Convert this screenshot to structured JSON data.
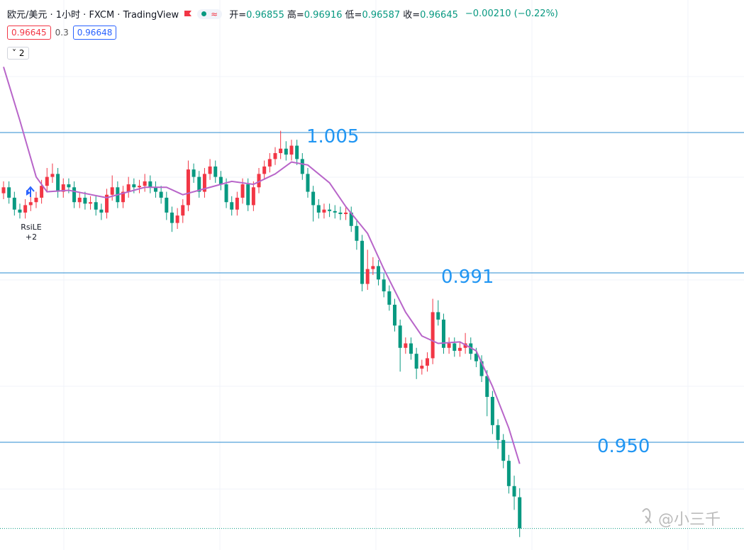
{
  "header": {
    "title": "欧元/美元 · 1小时 · FXCM · TradingView",
    "legend": [
      {
        "label": "开=",
        "value": 0.96855
      },
      {
        "label": "高=",
        "value": 0.96916
      },
      {
        "label": "低=",
        "value": 0.96587
      },
      {
        "label": "收=",
        "value": 0.96645
      }
    ],
    "change": "−0.00210 (−0.22%)",
    "bid": 0.96645,
    "spread": 0.3,
    "ask": 0.96648,
    "collapsed_count": 2
  },
  "chart_data": {
    "type": "candlestick",
    "up_color": "#f23645",
    "down_color": "#089981",
    "ylim": [
      0.965,
      1.002
    ],
    "ohlc": [
      [
        0.989,
        0.9898,
        0.9886,
        0.9894
      ],
      [
        0.9894,
        0.9898,
        0.9883,
        0.9887
      ],
      [
        0.9887,
        0.9891,
        0.9875,
        0.9879
      ],
      [
        0.9879,
        0.9883,
        0.9873,
        0.9877
      ],
      [
        0.9877,
        0.9886,
        0.9873,
        0.9882
      ],
      [
        0.9882,
        0.9888,
        0.9878,
        0.9884
      ],
      [
        0.9884,
        0.9891,
        0.988,
        0.9887
      ],
      [
        0.9887,
        0.9899,
        0.9883,
        0.9895
      ],
      [
        0.9895,
        0.9907,
        0.9891,
        0.9901
      ],
      [
        0.9901,
        0.991,
        0.9897,
        0.9903
      ],
      [
        0.9903,
        0.9907,
        0.9887,
        0.9891
      ],
      [
        0.9891,
        0.99,
        0.9887,
        0.9896
      ],
      [
        0.9896,
        0.99,
        0.989,
        0.9894
      ],
      [
        0.9894,
        0.9898,
        0.988,
        0.9884
      ],
      [
        0.9884,
        0.9891,
        0.988,
        0.9887
      ],
      [
        0.9887,
        0.9891,
        0.9879,
        0.9883
      ],
      [
        0.9883,
        0.9888,
        0.9879,
        0.9884
      ],
      [
        0.9884,
        0.9888,
        0.9875,
        0.9879
      ],
      [
        0.9879,
        0.9883,
        0.9872,
        0.9877
      ],
      [
        0.9877,
        0.9893,
        0.9873,
        0.9889
      ],
      [
        0.9889,
        0.9902,
        0.9885,
        0.9894
      ],
      [
        0.9894,
        0.9898,
        0.988,
        0.9884
      ],
      [
        0.9884,
        0.9895,
        0.988,
        0.9891
      ],
      [
        0.9891,
        0.9901,
        0.9887,
        0.9896
      ],
      [
        0.9896,
        0.99,
        0.989,
        0.9894
      ],
      [
        0.9894,
        0.9899,
        0.989,
        0.9895
      ],
      [
        0.9895,
        0.9903,
        0.9891,
        0.9898
      ],
      [
        0.9898,
        0.9902,
        0.989,
        0.9894
      ],
      [
        0.9894,
        0.9898,
        0.9887,
        0.9891
      ],
      [
        0.9891,
        0.9895,
        0.9883,
        0.9887
      ],
      [
        0.9887,
        0.9891,
        0.9872,
        0.9877
      ],
      [
        0.9877,
        0.9881,
        0.9864,
        0.987
      ],
      [
        0.987,
        0.988,
        0.9866,
        0.9875
      ],
      [
        0.9875,
        0.9886,
        0.987,
        0.9882
      ],
      [
        0.9882,
        0.9912,
        0.9878,
        0.9906
      ],
      [
        0.9906,
        0.991,
        0.9897,
        0.9901
      ],
      [
        0.9901,
        0.9905,
        0.9887,
        0.9891
      ],
      [
        0.9891,
        0.9907,
        0.9887,
        0.9903
      ],
      [
        0.9903,
        0.9913,
        0.9899,
        0.9908
      ],
      [
        0.9908,
        0.9912,
        0.9897,
        0.9901
      ],
      [
        0.9901,
        0.9905,
        0.9892,
        0.9896
      ],
      [
        0.9896,
        0.99,
        0.988,
        0.9884
      ],
      [
        0.9884,
        0.9888,
        0.9875,
        0.9879
      ],
      [
        0.9879,
        0.9891,
        0.9875,
        0.9887
      ],
      [
        0.9887,
        0.99,
        0.9883,
        0.9896
      ],
      [
        0.9896,
        0.99,
        0.9878,
        0.9882
      ],
      [
        0.9882,
        0.9898,
        0.9878,
        0.9894
      ],
      [
        0.9894,
        0.9907,
        0.989,
        0.9903
      ],
      [
        0.9903,
        0.9912,
        0.9899,
        0.9908
      ],
      [
        0.9908,
        0.9917,
        0.9904,
        0.9913
      ],
      [
        0.9913,
        0.9921,
        0.9909,
        0.9917
      ],
      [
        0.9917,
        0.9932,
        0.9913,
        0.992
      ],
      [
        0.992,
        0.9925,
        0.9912,
        0.9916
      ],
      [
        0.9916,
        0.9926,
        0.9912,
        0.9922
      ],
      [
        0.9922,
        0.9926,
        0.9909,
        0.9913
      ],
      [
        0.9913,
        0.9917,
        0.9899,
        0.9903
      ],
      [
        0.9903,
        0.9907,
        0.9887,
        0.9891
      ],
      [
        0.9891,
        0.9895,
        0.9871,
        0.9882
      ],
      [
        0.9882,
        0.9886,
        0.9873,
        0.9877
      ],
      [
        0.9877,
        0.9883,
        0.9873,
        0.9879
      ],
      [
        0.9879,
        0.9883,
        0.9874,
        0.9878
      ],
      [
        0.9878,
        0.9882,
        0.9873,
        0.9877
      ],
      [
        0.9877,
        0.9881,
        0.9872,
        0.9876
      ],
      [
        0.9876,
        0.9881,
        0.9872,
        0.9877
      ],
      [
        0.9877,
        0.9881,
        0.9864,
        0.9868
      ],
      [
        0.9868,
        0.9872,
        0.9852,
        0.9858
      ],
      [
        0.9858,
        0.9862,
        0.9824,
        0.9829
      ],
      [
        0.9829,
        0.9852,
        0.9825,
        0.9839
      ],
      [
        0.9839,
        0.9847,
        0.9835,
        0.9841
      ],
      [
        0.9841,
        0.9845,
        0.9828,
        0.9832
      ],
      [
        0.9832,
        0.9836,
        0.982,
        0.9824
      ],
      [
        0.9824,
        0.9828,
        0.9811,
        0.9815
      ],
      [
        0.9815,
        0.9819,
        0.9797,
        0.9801
      ],
      [
        0.9801,
        0.9805,
        0.977,
        0.9786
      ],
      [
        0.9786,
        0.9793,
        0.9782,
        0.9789
      ],
      [
        0.9789,
        0.9793,
        0.9778,
        0.9782
      ],
      [
        0.9782,
        0.9786,
        0.9765,
        0.9772
      ],
      [
        0.9772,
        0.9778,
        0.9768,
        0.9774
      ],
      [
        0.9774,
        0.9783,
        0.977,
        0.9779
      ],
      [
        0.9779,
        0.9819,
        0.9775,
        0.981
      ],
      [
        0.981,
        0.9818,
        0.9801,
        0.9805
      ],
      [
        0.9805,
        0.9809,
        0.9782,
        0.9786
      ],
      [
        0.9786,
        0.9793,
        0.9782,
        0.9789
      ],
      [
        0.9789,
        0.9793,
        0.978,
        0.9784
      ],
      [
        0.9784,
        0.979,
        0.978,
        0.9786
      ],
      [
        0.9786,
        0.9796,
        0.9782,
        0.9789
      ],
      [
        0.9789,
        0.9793,
        0.9778,
        0.9782
      ],
      [
        0.9782,
        0.9786,
        0.9773,
        0.9777
      ],
      [
        0.9777,
        0.9781,
        0.9763,
        0.9767
      ],
      [
        0.9767,
        0.9771,
        0.974,
        0.9753
      ],
      [
        0.9753,
        0.9757,
        0.9728,
        0.9734
      ],
      [
        0.9734,
        0.9738,
        0.9718,
        0.9724
      ],
      [
        0.9724,
        0.9728,
        0.9705,
        0.971
      ],
      [
        0.971,
        0.9714,
        0.9688,
        0.9693
      ],
      [
        0.9693,
        0.97,
        0.9677,
        0.9686
      ],
      [
        0.96855,
        0.96916,
        0.96587,
        0.96645
      ]
    ],
    "ma": {
      "color": "#b865c9",
      "x": [
        0,
        3,
        6,
        8,
        12,
        19,
        26,
        30,
        33,
        38,
        42,
        46,
        50,
        53,
        56,
        60,
        63,
        67,
        70,
        74,
        77,
        80,
        84,
        87,
        90,
        93,
        95
      ],
      "values": [
        0.9975,
        0.9939,
        0.9901,
        0.9891,
        0.9892,
        0.9887,
        0.9894,
        0.9894,
        0.9889,
        0.9894,
        0.9898,
        0.9896,
        0.9903,
        0.9911,
        0.9909,
        0.9897,
        0.9881,
        0.9863,
        0.9839,
        0.981,
        0.9794,
        0.9789,
        0.979,
        0.9784,
        0.976,
        0.9732,
        0.9708
      ]
    },
    "signal": {
      "label": "RsiLE",
      "count": "+2"
    },
    "annotations": [
      "1.005",
      "0.991",
      "0.950"
    ]
  },
  "watermark": "@小三千"
}
